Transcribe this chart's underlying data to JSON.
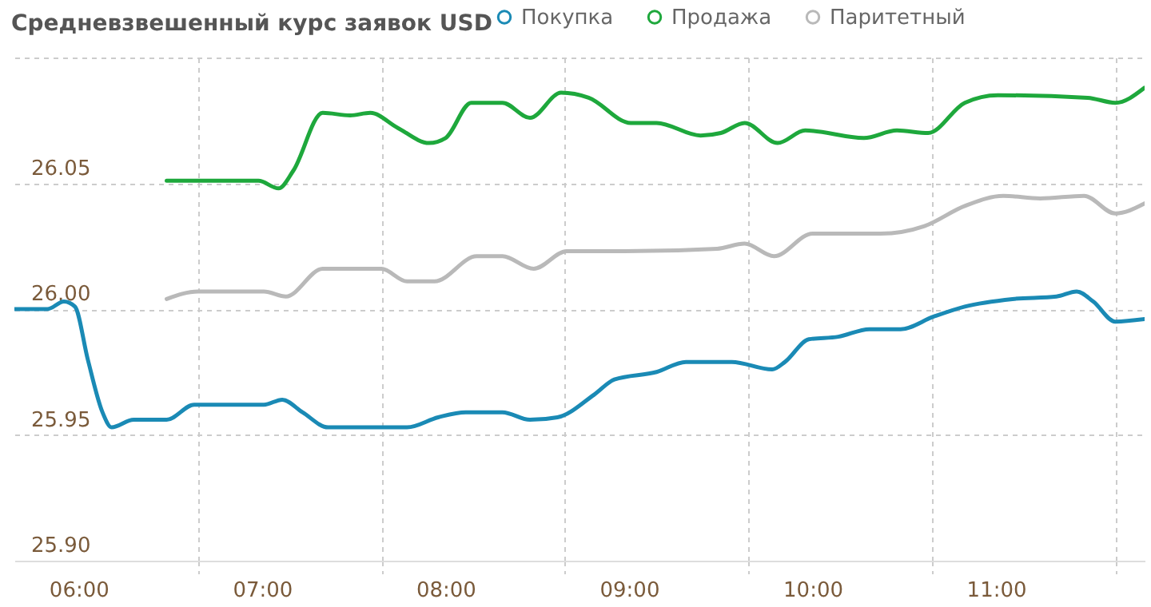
{
  "chart_data": {
    "type": "line",
    "title": "Средневзвешенный курс заявок USD",
    "xlim": [
      5.65,
      11.81
    ],
    "ylim": [
      25.9,
      26.1
    ],
    "xticks": [
      {
        "value": 6,
        "label": "06:00"
      },
      {
        "value": 6.65,
        "label": null
      },
      {
        "value": 7,
        "label": "07:00"
      },
      {
        "value": 7.65,
        "label": null
      },
      {
        "value": 8,
        "label": "08:00"
      },
      {
        "value": 8.65,
        "label": null
      },
      {
        "value": 9,
        "label": "09:00"
      },
      {
        "value": 9.65,
        "label": null
      },
      {
        "value": 10,
        "label": "10:00"
      },
      {
        "value": 10.65,
        "label": null
      },
      {
        "value": 11,
        "label": "11:00"
      },
      {
        "value": 11.65,
        "label": null
      }
    ],
    "yticks": [
      {
        "value": 25.9,
        "label": "25.90"
      },
      {
        "value": 25.95,
        "label": "25.95"
      },
      {
        "value": 26.0,
        "label": "26.00"
      },
      {
        "value": 26.05,
        "label": "26.05"
      },
      {
        "value": 26.1,
        "label": null
      }
    ],
    "grid": true,
    "legend": "top right",
    "marker": "none",
    "line_style": "solid",
    "series": [
      {
        "name": "Покупка",
        "color": "#1a8ab5",
        "x": [
          5.65,
          5.83,
          5.92,
          5.98,
          6.05,
          6.13,
          6.18,
          6.3,
          6.48,
          6.63,
          7.01,
          7.11,
          7.22,
          7.36,
          7.79,
          7.96,
          8.11,
          8.31,
          8.46,
          8.61,
          8.81,
          8.92,
          9.15,
          9.31,
          9.56,
          9.78,
          9.85,
          9.98,
          10.14,
          10.31,
          10.48,
          10.66,
          10.83,
          11.09,
          11.33,
          11.44,
          11.53,
          11.65,
          11.81
        ],
        "values": [
          26.0,
          26.0,
          26.003,
          26.001,
          25.98,
          25.959,
          25.953,
          25.956,
          25.956,
          25.962,
          25.962,
          25.964,
          25.959,
          25.953,
          25.953,
          25.957,
          25.959,
          25.959,
          25.956,
          25.957,
          25.966,
          25.972,
          25.975,
          25.979,
          25.979,
          25.976,
          25.979,
          25.988,
          25.989,
          25.992,
          25.992,
          25.997,
          26.001,
          26.004,
          26.005,
          26.007,
          26.003,
          25.995,
          25.996
        ]
      },
      {
        "name": "Продажа",
        "color": "#1ea83c",
        "x": [
          6.48,
          6.98,
          7.09,
          7.17,
          7.33,
          7.48,
          7.59,
          7.74,
          7.91,
          8.0,
          8.14,
          8.31,
          8.46,
          8.63,
          8.78,
          9.01,
          9.15,
          9.39,
          9.5,
          9.63,
          9.81,
          9.96,
          10.28,
          10.46,
          10.63,
          10.83,
          11.01,
          11.5,
          11.65,
          11.81
        ],
        "values": [
          26.051,
          26.051,
          26.048,
          26.055,
          26.078,
          26.077,
          26.078,
          26.072,
          26.066,
          26.068,
          26.082,
          26.082,
          26.076,
          26.086,
          26.084,
          26.074,
          26.074,
          26.069,
          26.07,
          26.074,
          26.066,
          26.071,
          26.068,
          26.071,
          26.07,
          26.082,
          26.085,
          26.084,
          26.082,
          26.088
        ]
      },
      {
        "name": "Паритетный",
        "color": "#b9b9b9",
        "x": [
          6.48,
          6.65,
          7.01,
          7.13,
          7.33,
          7.65,
          7.79,
          7.94,
          8.17,
          8.31,
          8.48,
          8.66,
          8.98,
          9.48,
          9.63,
          9.79,
          10.0,
          10.37,
          10.61,
          10.83,
          11.04,
          11.24,
          11.48,
          11.65,
          11.81
        ],
        "values": [
          26.004,
          26.007,
          26.007,
          26.005,
          26.016,
          26.016,
          26.011,
          26.011,
          26.021,
          26.021,
          26.016,
          26.023,
          26.023,
          26.024,
          26.026,
          26.021,
          26.03,
          26.03,
          26.033,
          26.041,
          26.045,
          26.044,
          26.045,
          26.038,
          26.042
        ]
      }
    ]
  }
}
